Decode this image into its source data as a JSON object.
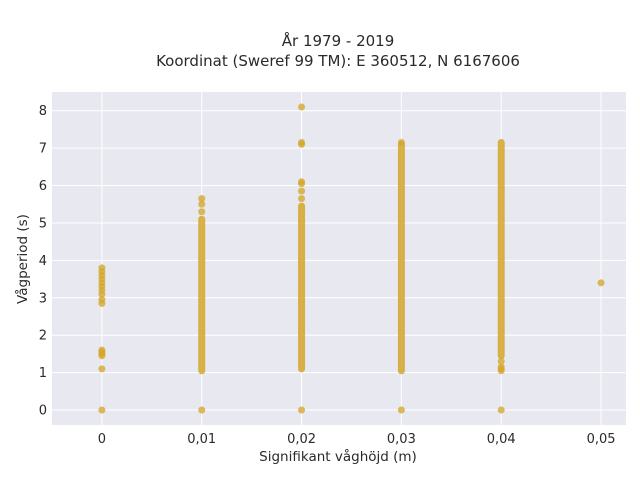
{
  "chart_data": {
    "type": "scatter",
    "title": "År 1979 - 2019",
    "subtitle": "Koordinat (Sweref 99 TM): E 360512, N 6167606",
    "xlabel": "Signifikant våghöjd (m)",
    "ylabel": "Vågperiod (s)",
    "xlim": [
      -0.005,
      0.0525
    ],
    "ylim": [
      -0.4,
      8.5
    ],
    "xticks": [
      0,
      0.01,
      0.02,
      0.03,
      0.04,
      0.05
    ],
    "xtick_labels": [
      "0",
      "0,01",
      "0,02",
      "0,03",
      "0,04",
      "0,05"
    ],
    "yticks": [
      0,
      1,
      2,
      3,
      4,
      5,
      6,
      7,
      8
    ],
    "ytick_labels": [
      "0",
      "1",
      "2",
      "3",
      "4",
      "5",
      "6",
      "7",
      "8"
    ],
    "grid": true,
    "background": "#e8e8f0",
    "grid_color": "#ffffff",
    "point_color": "#d4a62a",
    "series": [
      {
        "points": [
          [
            0,
            0
          ],
          [
            0,
            1.1
          ],
          [
            0,
            1.45
          ],
          [
            0,
            1.5
          ],
          [
            0,
            1.55
          ],
          [
            0,
            1.6
          ],
          [
            0,
            2.85
          ],
          [
            0,
            2.95
          ],
          [
            0,
            3.1
          ],
          [
            0,
            3.2
          ],
          [
            0,
            3.3
          ],
          [
            0,
            3.4
          ],
          [
            0,
            3.5
          ],
          [
            0,
            3.6
          ],
          [
            0,
            3.7
          ],
          [
            0,
            3.8
          ],
          [
            0.01,
            0
          ],
          [
            0.01,
            5.3
          ],
          [
            0.01,
            5.5
          ],
          [
            0.01,
            5.65
          ],
          [
            0.02,
            0
          ],
          [
            0.02,
            5.65
          ],
          [
            0.02,
            5.85
          ],
          [
            0.02,
            6.05
          ],
          [
            0.02,
            6.1
          ],
          [
            0.02,
            7.1
          ],
          [
            0.02,
            7.15
          ],
          [
            0.02,
            8.1
          ],
          [
            0.03,
            0
          ],
          [
            0.03,
            7.15
          ],
          [
            0.04,
            0
          ],
          [
            0.04,
            1.05
          ],
          [
            0.04,
            1.1
          ],
          [
            0.04,
            1.15
          ],
          [
            0.04,
            1.3
          ],
          [
            0.05,
            3.4
          ]
        ],
        "ranges": [
          [
            0.01,
            1.05,
            5.1
          ],
          [
            0.02,
            1.1,
            5.45
          ],
          [
            0.03,
            1.05,
            7.1
          ],
          [
            0.04,
            1.45,
            7.15
          ]
        ]
      }
    ]
  }
}
